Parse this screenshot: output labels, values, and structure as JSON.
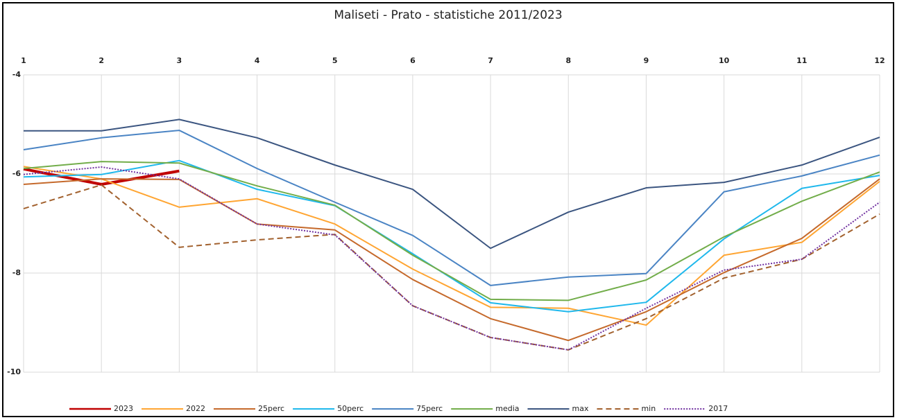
{
  "chart_data": {
    "type": "line",
    "title": "Maliseti  - Prato - statistiche 2011/2023",
    "categories": [
      "1",
      "2",
      "3",
      "4",
      "5",
      "6",
      "7",
      "8",
      "9",
      "10",
      "11",
      "12"
    ],
    "ylim": [
      -10,
      -4
    ],
    "yticks": [
      -4,
      -6,
      -8,
      -10
    ],
    "grid": true,
    "series": [
      {
        "name": "2023",
        "color": "#c00000",
        "linestyle": "thick",
        "values": [
          -5.9,
          -6.21,
          -5.94,
          null,
          null,
          null,
          null,
          null,
          null,
          null,
          null,
          null
        ]
      },
      {
        "name": "2022",
        "color": "#ffa532",
        "linestyle": "solid",
        "values": [
          -5.85,
          -6.1,
          -6.67,
          -6.5,
          -7.01,
          -7.92,
          -8.69,
          -8.71,
          -9.05,
          -7.64,
          -7.38,
          -6.15
        ]
      },
      {
        "name": "25perc",
        "color": "#c5692b",
        "linestyle": "solid",
        "values": [
          -6.21,
          -6.1,
          -6.11,
          -7.01,
          -7.13,
          -8.13,
          -8.92,
          -9.36,
          -8.78,
          -7.99,
          -7.3,
          -6.1
        ]
      },
      {
        "name": "50perc",
        "color": "#1fb8ec",
        "linestyle": "solid",
        "values": [
          -6.06,
          -6.01,
          -5.73,
          -6.31,
          -6.64,
          -7.61,
          -8.6,
          -8.78,
          -8.59,
          -7.31,
          -6.29,
          -6.03
        ]
      },
      {
        "name": "75perc",
        "color": "#4a84c4",
        "linestyle": "solid",
        "values": [
          -5.51,
          -5.27,
          -5.12,
          -5.89,
          -6.57,
          -7.24,
          -8.25,
          -8.08,
          -8.01,
          -6.36,
          -6.04,
          -5.62
        ]
      },
      {
        "name": "media",
        "color": "#72ad4a",
        "linestyle": "solid",
        "values": [
          -5.89,
          -5.75,
          -5.78,
          -6.24,
          -6.63,
          -7.64,
          -8.53,
          -8.55,
          -8.14,
          -7.27,
          -6.55,
          -5.96
        ]
      },
      {
        "name": "max",
        "color": "#3b5580",
        "linestyle": "solid",
        "values": [
          -5.13,
          -5.13,
          -4.9,
          -5.27,
          -5.82,
          -6.31,
          -7.5,
          -6.77,
          -6.28,
          -6.17,
          -5.82,
          -5.26
        ]
      },
      {
        "name": "min",
        "color": "#a2612e",
        "linestyle": "dashed",
        "values": [
          -6.7,
          -6.22,
          -7.48,
          -7.33,
          -7.22,
          -8.66,
          -9.3,
          -9.55,
          -8.92,
          -8.1,
          -7.72,
          -6.81
        ]
      },
      {
        "name": "2017",
        "color": "#7030a0",
        "linestyle": "dotted",
        "values": [
          -6.01,
          -5.86,
          -6.1,
          -7.01,
          -7.23,
          -8.66,
          -9.3,
          -9.55,
          -8.71,
          -7.94,
          -7.72,
          -6.57
        ]
      }
    ]
  }
}
